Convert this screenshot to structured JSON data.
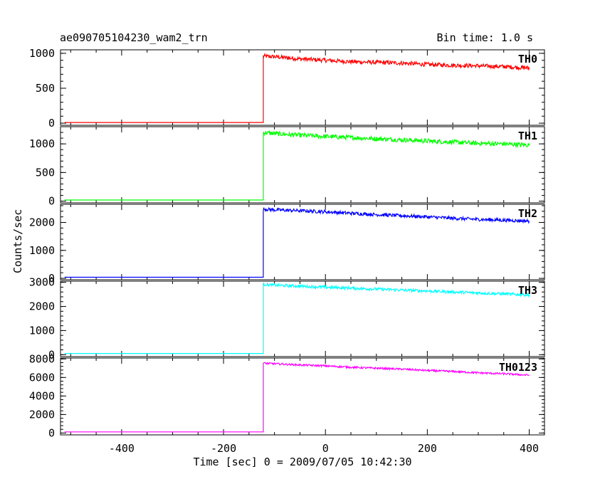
{
  "header": {
    "title": "ae090705104230_wam2_trn",
    "bin_time": "Bin time: 1.0 s"
  },
  "axes": {
    "xlabel": "Time [sec] 0 = 2009/07/05 10:42:30",
    "ylabel": "Counts/sec"
  },
  "chart_data": {
    "type": "line",
    "title": "ae090705104230_wam2_trn",
    "subtitle": "Bin time: 1.0 s",
    "xlabel": "Time [sec] 0 = 2009/07/05 10:42:30",
    "ylabel": "Counts/sec",
    "xlim": [
      -520,
      430
    ],
    "x_ticks": [
      -400,
      -200,
      0,
      200,
      400
    ],
    "grid": false,
    "trigger_time": -122,
    "series": [
      {
        "name": "TH0",
        "color": "#ff0000",
        "ylim": [
          -30,
          1050
        ],
        "yticks": [
          0,
          500,
          1000
        ],
        "pre_level": 10,
        "x": [
          -122,
          -100,
          -50,
          0,
          50,
          100,
          150,
          200,
          250,
          300,
          350,
          400
        ],
        "values": [
          960,
          950,
          920,
          900,
          880,
          870,
          860,
          840,
          830,
          820,
          810,
          790
        ],
        "noise": 30
      },
      {
        "name": "TH1",
        "color": "#00ff00",
        "ylim": [
          -30,
          1300
        ],
        "yticks": [
          0,
          500,
          1000
        ],
        "pre_level": 20,
        "x": [
          -122,
          -100,
          -50,
          0,
          50,
          100,
          150,
          200,
          250,
          300,
          350,
          400
        ],
        "values": [
          1200,
          1180,
          1150,
          1130,
          1110,
          1090,
          1070,
          1050,
          1030,
          1010,
          1000,
          980
        ],
        "noise": 40
      },
      {
        "name": "TH2",
        "color": "#0000ff",
        "ylim": [
          -50,
          2650
        ],
        "yticks": [
          0,
          1000,
          2000
        ],
        "pre_level": 40,
        "x": [
          -122,
          -100,
          -50,
          0,
          50,
          100,
          150,
          200,
          250,
          300,
          350,
          400
        ],
        "values": [
          2480,
          2450,
          2420,
          2380,
          2330,
          2280,
          2240,
          2200,
          2150,
          2110,
          2080,
          2050
        ],
        "noise": 60
      },
      {
        "name": "TH3",
        "color": "#00ffff",
        "ylim": [
          -80,
          3050
        ],
        "yticks": [
          0,
          1000,
          2000,
          3000
        ],
        "pre_level": 50,
        "x": [
          -122,
          -100,
          -50,
          0,
          50,
          100,
          150,
          200,
          250,
          300,
          350,
          400
        ],
        "values": [
          2920,
          2880,
          2840,
          2800,
          2760,
          2720,
          2680,
          2640,
          2600,
          2560,
          2520,
          2480
        ],
        "noise": 60
      },
      {
        "name": "TH0123",
        "color": "#ff00ff",
        "ylim": [
          -200,
          8100
        ],
        "yticks": [
          0,
          2000,
          4000,
          6000,
          8000
        ],
        "pre_level": 120,
        "x": [
          -122,
          -100,
          -50,
          0,
          50,
          100,
          150,
          200,
          250,
          300,
          350,
          400
        ],
        "values": [
          7550,
          7480,
          7350,
          7250,
          7100,
          7000,
          6900,
          6750,
          6650,
          6500,
          6400,
          6250
        ],
        "noise": 100
      }
    ]
  }
}
